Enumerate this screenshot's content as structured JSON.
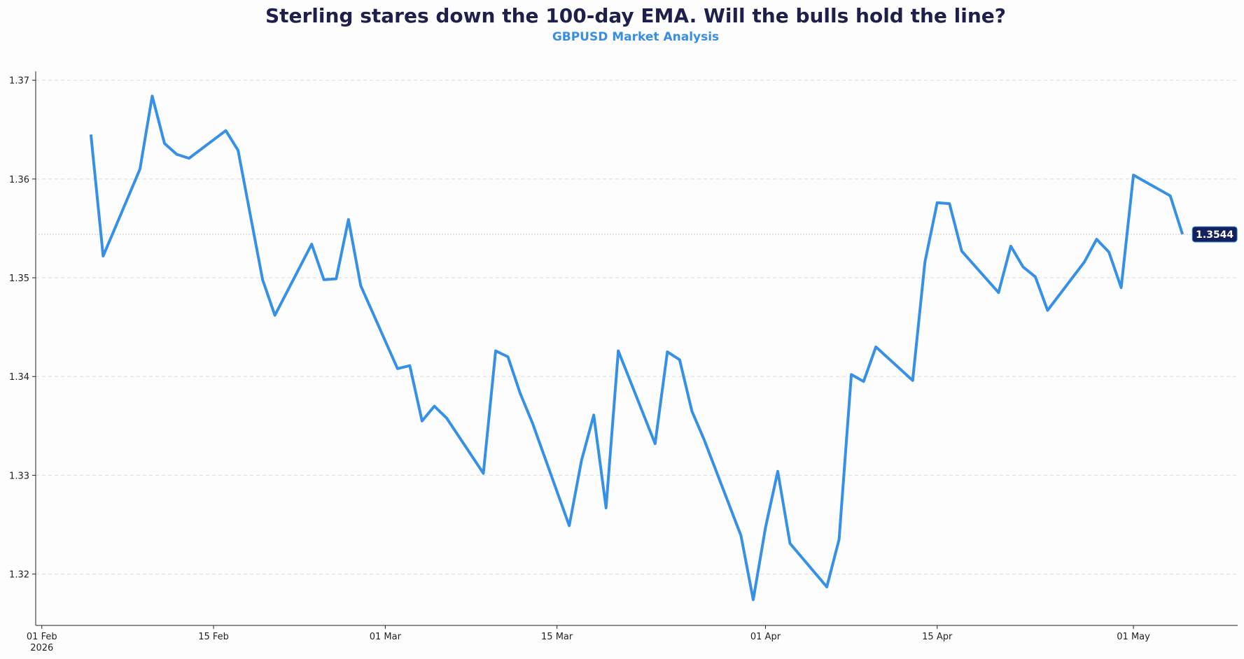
{
  "chart_data": {
    "type": "line",
    "title": "Sterling stares down the 100-day EMA. Will the bulls hold the line?",
    "subtitle": "GBPUSD Market Analysis",
    "x": [
      "2026-02-05",
      "2026-02-06",
      "2026-02-09",
      "2026-02-10",
      "2026-02-11",
      "2026-02-12",
      "2026-02-13",
      "2026-02-16",
      "2026-02-17",
      "2026-02-19",
      "2026-02-20",
      "2026-02-23",
      "2026-02-24",
      "2026-02-25",
      "2026-02-26",
      "2026-02-27",
      "2026-03-02",
      "2026-03-03",
      "2026-03-04",
      "2026-03-05",
      "2026-03-06",
      "2026-03-09",
      "2026-03-10",
      "2026-03-11",
      "2026-03-12",
      "2026-03-13",
      "2026-03-16",
      "2026-03-17",
      "2026-03-18",
      "2026-03-19",
      "2026-03-20",
      "2026-03-23",
      "2026-03-24",
      "2026-03-25",
      "2026-03-26",
      "2026-03-27",
      "2026-03-30",
      "2026-03-31",
      "2026-04-01",
      "2026-04-02",
      "2026-04-03",
      "2026-04-06",
      "2026-04-07",
      "2026-04-08",
      "2026-04-09",
      "2026-04-10",
      "2026-04-13",
      "2026-04-14",
      "2026-04-15",
      "2026-04-16",
      "2026-04-17",
      "2026-04-20",
      "2026-04-21",
      "2026-04-22",
      "2026-04-23",
      "2026-04-24",
      "2026-04-27",
      "2026-04-28",
      "2026-04-29",
      "2026-04-30",
      "2026-05-01",
      "2026-05-04",
      "2026-05-05"
    ],
    "series": [
      {
        "name": "GBPUSD",
        "color": "#3590e6",
        "values": [
          1.3645,
          1.3522,
          1.361,
          1.3684,
          1.3636,
          1.3625,
          1.3621,
          1.3649,
          1.3629,
          1.3498,
          1.3462,
          1.3534,
          1.3498,
          1.3499,
          1.3559,
          1.3492,
          1.3408,
          1.3411,
          1.3355,
          1.337,
          1.3358,
          1.3302,
          1.3426,
          1.342,
          1.3383,
          1.3353,
          1.3249,
          1.3315,
          1.3361,
          1.3267,
          1.3426,
          1.3332,
          1.3425,
          1.3417,
          1.3365,
          1.3336,
          1.3239,
          1.3174,
          1.3247,
          1.3304,
          1.3231,
          1.3187,
          1.3235,
          1.3402,
          1.3395,
          1.343,
          1.3396,
          1.3516,
          1.3576,
          1.3575,
          1.3527,
          1.3485,
          1.3532,
          1.3511,
          1.3501,
          1.3467,
          1.3516,
          1.3539,
          1.3526,
          1.349,
          1.3604,
          1.3583,
          1.3544
        ]
      }
    ],
    "xlim": [
      "2026-01-31T12:00Z",
      "2026-05-09T12:00Z"
    ],
    "xticks": [
      {
        "value": "2026-02-01",
        "label": "01 Feb\n2026"
      },
      {
        "value": "2026-02-15",
        "label": "15 Feb"
      },
      {
        "value": "2026-03-01",
        "label": "01 Mar"
      },
      {
        "value": "2026-03-15",
        "label": "15 Mar"
      },
      {
        "value": "2026-04-01",
        "label": "01 Apr"
      },
      {
        "value": "2026-04-15",
        "label": "15 Apr"
      },
      {
        "value": "2026-05-01",
        "label": "01 May"
      }
    ],
    "ylim": [
      1.3148,
      1.3709
    ],
    "yticks": [
      1.32,
      1.33,
      1.34,
      1.35,
      1.36,
      1.37
    ],
    "grid": true
  }
}
